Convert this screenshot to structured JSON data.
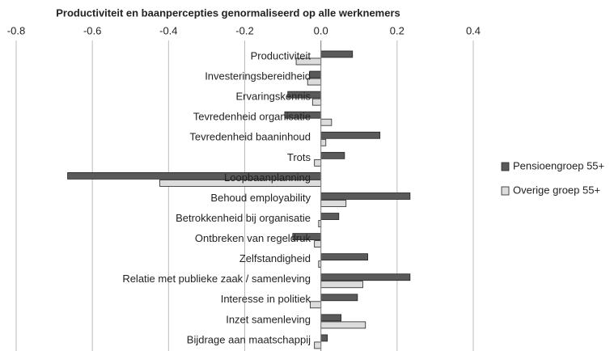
{
  "chart_data": {
    "type": "bar",
    "orientation": "horizontal",
    "title": "Productiviteit en baanpercepties genormaliseerd op alle werknemers",
    "categories": [
      "Productiviteit",
      "Investeringsbereidheid",
      "Ervaringskennis",
      "Tevredenheid organisatie",
      "Tevredenheid baaninhoud",
      "Trots",
      "Loopbaanplanning",
      "Behoud employability",
      "Betrokkenheid bij organisatie",
      "Ontbreken van regeldruk",
      "Zelfstandigheid",
      "Relatie met publieke zaak / samenleving",
      "Interesse in politiek",
      "Inzet samenleving",
      "Bijdrage aan maatschappij"
    ],
    "series": [
      {
        "name": "Pensioengroep 55+",
        "color": "#5a5a5a",
        "values": [
          0.083,
          -0.03,
          -0.087,
          -0.095,
          0.155,
          0.062,
          -0.665,
          0.234,
          0.047,
          -0.074,
          0.123,
          0.234,
          0.096,
          0.053,
          0.017
        ]
      },
      {
        "name": "Overige groep 55+",
        "color": "#dcdcdc",
        "values": [
          -0.065,
          -0.035,
          -0.022,
          0.028,
          0.013,
          -0.017,
          -0.423,
          0.066,
          -0.006,
          -0.017,
          -0.006,
          0.11,
          -0.028,
          0.117,
          -0.017
        ]
      }
    ],
    "xlim": [
      -0.8,
      0.4
    ],
    "xticks": [
      -0.8,
      -0.6,
      -0.4,
      -0.2,
      {
        "value": 0,
        "label": "0.0"
      },
      0.2,
      0.4
    ],
    "grid": true,
    "legend": "right"
  }
}
